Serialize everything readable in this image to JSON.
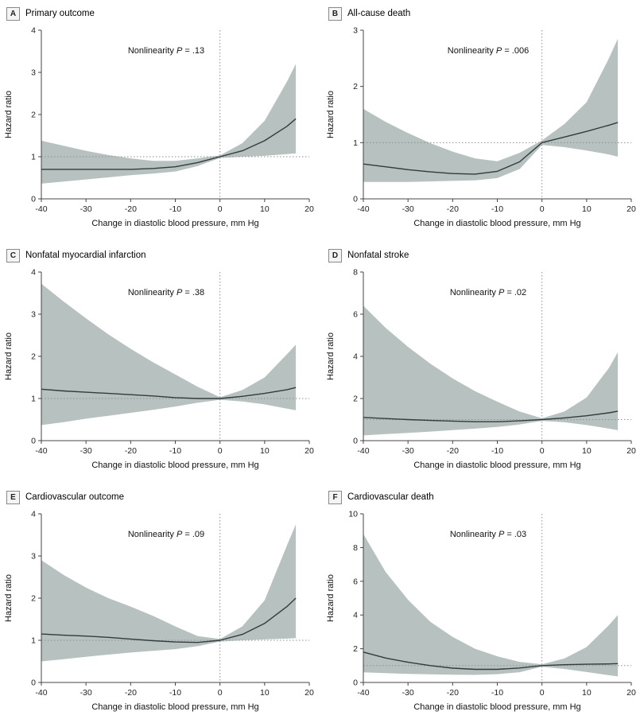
{
  "figure": {
    "x_axis_label": "Change in diastolic blood pressure, mm Hg",
    "y_axis_label": "Hazard ratio",
    "colors": {
      "band": "#b7c1c0",
      "line": "#333b3b",
      "axis": "#444444",
      "ref": "#8f8f8f",
      "tick_text": "#222222",
      "label_text": "#111111"
    }
  },
  "chart_data": [
    {
      "type": "line",
      "panel_letter": "A",
      "title": "Primary outcome",
      "annotation": {
        "before": "Nonlinearity ",
        "italic": "P",
        "after": " = .13"
      },
      "xlabel": "Change in diastolic blood pressure, mm Hg",
      "ylabel": "Hazard ratio",
      "xlim": [
        -40,
        20
      ],
      "ylim": [
        0,
        4
      ],
      "x_ticks": [
        -40,
        -30,
        -20,
        -10,
        0,
        10,
        20
      ],
      "y_ticks": [
        0,
        1,
        2,
        3,
        4
      ],
      "ref_x": 0,
      "ref_y": 1,
      "x": [
        -40,
        -35,
        -30,
        -25,
        -20,
        -15,
        -10,
        -5,
        0,
        5,
        10,
        15,
        17
      ],
      "line": [
        0.7,
        0.7,
        0.7,
        0.7,
        0.7,
        0.72,
        0.76,
        0.86,
        1.0,
        1.14,
        1.38,
        1.72,
        1.9
      ],
      "lower": [
        0.36,
        0.41,
        0.46,
        0.51,
        0.56,
        0.6,
        0.65,
        0.78,
        0.97,
        1.0,
        1.02,
        1.06,
        1.08
      ],
      "upper": [
        1.38,
        1.26,
        1.14,
        1.04,
        0.96,
        0.9,
        0.9,
        0.96,
        1.03,
        1.32,
        1.85,
        2.78,
        3.2
      ]
    },
    {
      "type": "line",
      "panel_letter": "B",
      "title": "All-cause death",
      "annotation": {
        "before": "Nonlinearity ",
        "italic": "P",
        "after": " = .006"
      },
      "xlabel": "Change in diastolic blood pressure, mm Hg",
      "ylabel": "Hazard ratio",
      "xlim": [
        -40,
        20
      ],
      "ylim": [
        0,
        3
      ],
      "x_ticks": [
        -40,
        -30,
        -20,
        -10,
        0,
        10,
        20
      ],
      "y_ticks": [
        0,
        1,
        2,
        3
      ],
      "ref_x": 0,
      "ref_y": 1,
      "x": [
        -40,
        -35,
        -30,
        -25,
        -20,
        -15,
        -10,
        -5,
        0,
        5,
        10,
        15,
        17
      ],
      "line": [
        0.62,
        0.57,
        0.52,
        0.48,
        0.45,
        0.44,
        0.49,
        0.66,
        1.0,
        1.1,
        1.2,
        1.31,
        1.36
      ],
      "lower": [
        0.3,
        0.3,
        0.3,
        0.31,
        0.32,
        0.33,
        0.37,
        0.53,
        0.96,
        0.92,
        0.86,
        0.79,
        0.75
      ],
      "upper": [
        1.6,
        1.37,
        1.17,
        0.99,
        0.84,
        0.72,
        0.67,
        0.82,
        1.04,
        1.33,
        1.72,
        2.5,
        2.85
      ]
    },
    {
      "type": "line",
      "panel_letter": "C",
      "title": "Nonfatal myocardial infarction",
      "annotation": {
        "before": "Nonlinearity ",
        "italic": "P",
        "after": " = .38"
      },
      "xlabel": "Change in diastolic blood pressure, mm Hg",
      "ylabel": "Hazard ratio",
      "xlim": [
        -40,
        20
      ],
      "ylim": [
        0,
        4
      ],
      "x_ticks": [
        -40,
        -30,
        -20,
        -10,
        0,
        10,
        20
      ],
      "y_ticks": [
        0,
        1,
        2,
        3,
        4
      ],
      "ref_x": 0,
      "ref_y": 1,
      "x": [
        -40,
        -35,
        -30,
        -25,
        -20,
        -15,
        -10,
        -5,
        0,
        5,
        10,
        15,
        17
      ],
      "line": [
        1.22,
        1.18,
        1.15,
        1.12,
        1.09,
        1.06,
        1.02,
        1.0,
        1.0,
        1.05,
        1.12,
        1.21,
        1.26
      ],
      "lower": [
        0.37,
        0.44,
        0.52,
        0.59,
        0.66,
        0.73,
        0.81,
        0.9,
        0.97,
        0.93,
        0.86,
        0.76,
        0.72
      ],
      "upper": [
        3.72,
        3.3,
        2.9,
        2.52,
        2.18,
        1.86,
        1.57,
        1.28,
        1.03,
        1.2,
        1.5,
        2.05,
        2.28
      ]
    },
    {
      "type": "line",
      "panel_letter": "D",
      "title": "Nonfatal stroke",
      "annotation": {
        "before": "Nonlinearity ",
        "italic": "P",
        "after": " = .02"
      },
      "xlabel": "Change in diastolic blood pressure, mm Hg",
      "ylabel": "Hazard ratio",
      "xlim": [
        -40,
        20
      ],
      "ylim": [
        0,
        8
      ],
      "x_ticks": [
        -40,
        -30,
        -20,
        -10,
        0,
        10,
        20
      ],
      "y_ticks": [
        0,
        2,
        4,
        6,
        8
      ],
      "ref_x": 0,
      "ref_y": 1,
      "x": [
        -40,
        -35,
        -30,
        -25,
        -20,
        -15,
        -10,
        -5,
        0,
        5,
        10,
        15,
        17
      ],
      "line": [
        1.1,
        1.05,
        1.0,
        0.96,
        0.93,
        0.9,
        0.9,
        0.94,
        1.0,
        1.08,
        1.18,
        1.32,
        1.4
      ],
      "lower": [
        0.25,
        0.31,
        0.37,
        0.43,
        0.5,
        0.57,
        0.65,
        0.77,
        0.94,
        0.87,
        0.74,
        0.57,
        0.5
      ],
      "upper": [
        6.4,
        5.35,
        4.45,
        3.65,
        2.95,
        2.35,
        1.85,
        1.38,
        1.06,
        1.38,
        2.05,
        3.45,
        4.2
      ]
    },
    {
      "type": "line",
      "panel_letter": "E",
      "title": "Cardiovascular outcome",
      "annotation": {
        "before": "Nonlinearity ",
        "italic": "P",
        "after": " = .09"
      },
      "xlabel": "Change in diastolic blood pressure, mm Hg",
      "ylabel": "Hazard ratio",
      "xlim": [
        -40,
        20
      ],
      "ylim": [
        0,
        4
      ],
      "x_ticks": [
        -40,
        -30,
        -20,
        -10,
        0,
        10,
        20
      ],
      "y_ticks": [
        0,
        1,
        2,
        3,
        4
      ],
      "ref_x": 0,
      "ref_y": 1,
      "x": [
        -40,
        -35,
        -30,
        -25,
        -20,
        -15,
        -10,
        -5,
        0,
        5,
        10,
        15,
        17
      ],
      "line": [
        1.15,
        1.12,
        1.1,
        1.07,
        1.03,
        0.99,
        0.96,
        0.95,
        1.0,
        1.14,
        1.4,
        1.8,
        2.0
      ],
      "lower": [
        0.5,
        0.55,
        0.61,
        0.66,
        0.71,
        0.75,
        0.79,
        0.86,
        0.97,
        1.0,
        1.02,
        1.04,
        1.05
      ],
      "upper": [
        2.9,
        2.55,
        2.25,
        2.0,
        1.8,
        1.58,
        1.33,
        1.1,
        1.03,
        1.33,
        1.95,
        3.25,
        3.75
      ]
    },
    {
      "type": "line",
      "panel_letter": "F",
      "title": "Cardiovascular death",
      "annotation": {
        "before": "Nonlinearity ",
        "italic": "P",
        "after": " = .03"
      },
      "xlabel": "Change in diastolic blood pressure, mm Hg",
      "ylabel": "Hazard ratio",
      "xlim": [
        -40,
        20
      ],
      "ylim": [
        0,
        10
      ],
      "x_ticks": [
        -40,
        -30,
        -20,
        -10,
        0,
        10,
        20
      ],
      "y_ticks": [
        0,
        2,
        4,
        6,
        8,
        10
      ],
      "ref_x": 0,
      "ref_y": 1,
      "x": [
        -40,
        -35,
        -30,
        -25,
        -20,
        -15,
        -10,
        -5,
        0,
        5,
        10,
        15,
        17
      ],
      "line": [
        1.8,
        1.45,
        1.2,
        1.0,
        0.85,
        0.78,
        0.78,
        0.86,
        1.0,
        1.05,
        1.08,
        1.1,
        1.12
      ],
      "lower": [
        0.6,
        0.55,
        0.51,
        0.48,
        0.46,
        0.45,
        0.49,
        0.61,
        0.93,
        0.8,
        0.62,
        0.43,
        0.36
      ],
      "upper": [
        8.8,
        6.55,
        4.9,
        3.6,
        2.7,
        2.0,
        1.55,
        1.22,
        1.08,
        1.42,
        2.1,
        3.4,
        4.0
      ]
    }
  ]
}
